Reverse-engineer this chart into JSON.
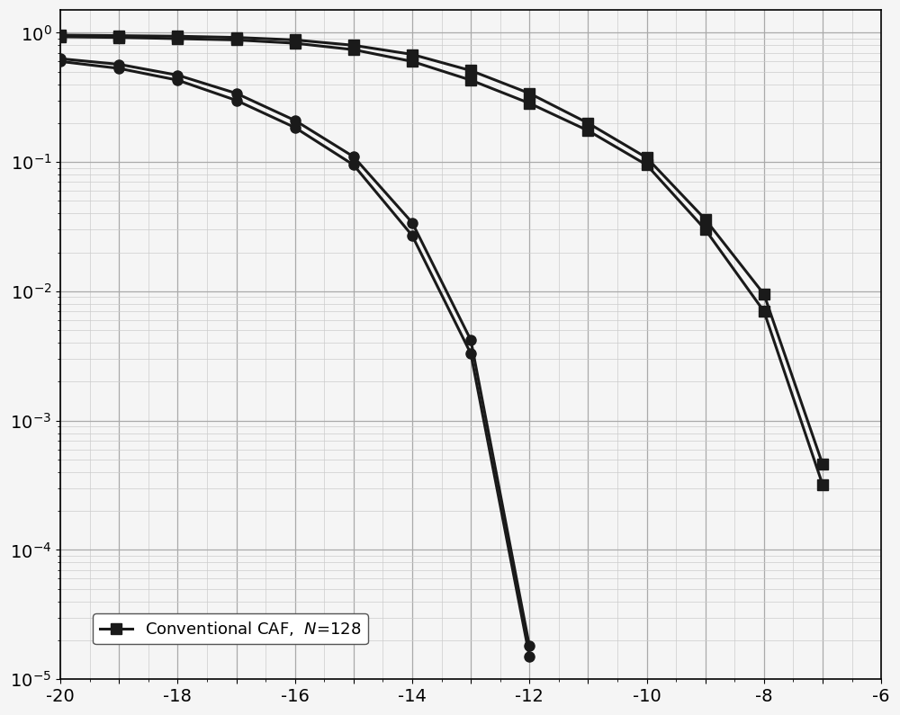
{
  "title": "",
  "xlim": [
    -20,
    -6
  ],
  "ylim_log": [
    1e-05,
    1.5
  ],
  "background_color": "#f5f5f5",
  "grid_major_color": "#aaaaaa",
  "grid_minor_color": "#cccccc",
  "curve_square_1": {
    "x": [
      -20,
      -19,
      -18,
      -17,
      -16,
      -15,
      -14,
      -13,
      -12,
      -11,
      -10,
      -9,
      -8,
      -7
    ],
    "y": [
      0.93,
      0.92,
      0.9,
      0.88,
      0.83,
      0.74,
      0.6,
      0.43,
      0.285,
      0.175,
      0.095,
      0.03,
      0.007,
      0.00032
    ],
    "color": "#1a1a1a",
    "marker": "s",
    "markersize": 8,
    "linewidth": 2.2,
    "label": "Conventional CAF,  $\\mathit{N}$=128"
  },
  "curve_square_2": {
    "x": [
      -20,
      -19,
      -18,
      -17,
      -16,
      -15,
      -14,
      -13,
      -12,
      -11,
      -10,
      -9,
      -8,
      -7
    ],
    "y": [
      0.96,
      0.95,
      0.94,
      0.92,
      0.88,
      0.8,
      0.68,
      0.51,
      0.34,
      0.2,
      0.108,
      0.036,
      0.0095,
      0.00046
    ],
    "color": "#1a1a1a",
    "marker": "s",
    "markersize": 8,
    "linewidth": 2.2,
    "label": null
  },
  "curve_circle_1": {
    "x": [
      -20,
      -19,
      -18,
      -17,
      -16,
      -15,
      -14,
      -13,
      -12
    ],
    "y": [
      0.6,
      0.53,
      0.43,
      0.3,
      0.185,
      0.095,
      0.027,
      0.0033,
      1.5e-05
    ],
    "color": "#1a1a1a",
    "marker": "o",
    "markersize": 8,
    "linewidth": 2.2,
    "label": null
  },
  "curve_circle_2": {
    "x": [
      -20,
      -19,
      -18,
      -17,
      -16,
      -15,
      -14,
      -13,
      -12
    ],
    "y": [
      0.63,
      0.57,
      0.47,
      0.34,
      0.21,
      0.11,
      0.034,
      0.0042,
      1.8e-05
    ],
    "color": "#1a1a1a",
    "marker": "o",
    "markersize": 8,
    "linewidth": 2.2,
    "label": null
  }
}
